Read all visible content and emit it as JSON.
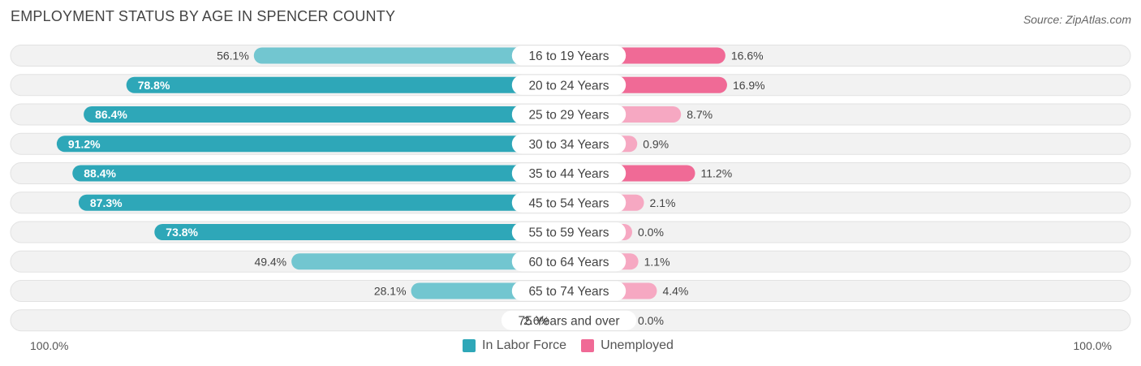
{
  "title": "EMPLOYMENT STATUS BY AGE IN SPENCER COUNTY",
  "source": "Source: ZipAtlas.com",
  "axis": {
    "left_label": "100.0%",
    "right_label": "100.0%"
  },
  "legend": [
    {
      "label": "In Labor Force",
      "color": "#2EA7B8"
    },
    {
      "label": "Unemployed",
      "color": "#F06A96"
    }
  ],
  "colors": {
    "labor_strong": "#2EA7B8",
    "labor_light": "#72C6D0",
    "unemp_strong": "#F06A96",
    "unemp_light": "#F6A8C2",
    "track": "#F2F2F2",
    "track_border": "#E2E2E2"
  },
  "chart_data": {
    "type": "bar",
    "orientation": "horizontal-diverging",
    "title": "EMPLOYMENT STATUS BY AGE IN SPENCER COUNTY",
    "xlim": [
      -100,
      100
    ],
    "categories": [
      "16 to 19 Years",
      "20 to 24 Years",
      "25 to 29 Years",
      "30 to 34 Years",
      "35 to 44 Years",
      "45 to 54 Years",
      "55 to 59 Years",
      "60 to 64 Years",
      "65 to 74 Years",
      "75 Years and over"
    ],
    "series": [
      {
        "name": "In Labor Force",
        "values": [
          56.1,
          78.8,
          86.4,
          91.2,
          88.4,
          87.3,
          73.8,
          49.4,
          28.1,
          2.6
        ],
        "labels": [
          "56.1%",
          "78.8%",
          "86.4%",
          "91.2%",
          "88.4%",
          "87.3%",
          "73.8%",
          "49.4%",
          "28.1%",
          "2.6%"
        ]
      },
      {
        "name": "Unemployed",
        "values": [
          16.6,
          16.9,
          8.7,
          0.9,
          11.2,
          2.1,
          0.0,
          1.1,
          4.4,
          0.0
        ],
        "labels": [
          "16.6%",
          "16.9%",
          "8.7%",
          "0.9%",
          "11.2%",
          "2.1%",
          "0.0%",
          "1.1%",
          "4.4%",
          "0.0%"
        ]
      }
    ]
  }
}
